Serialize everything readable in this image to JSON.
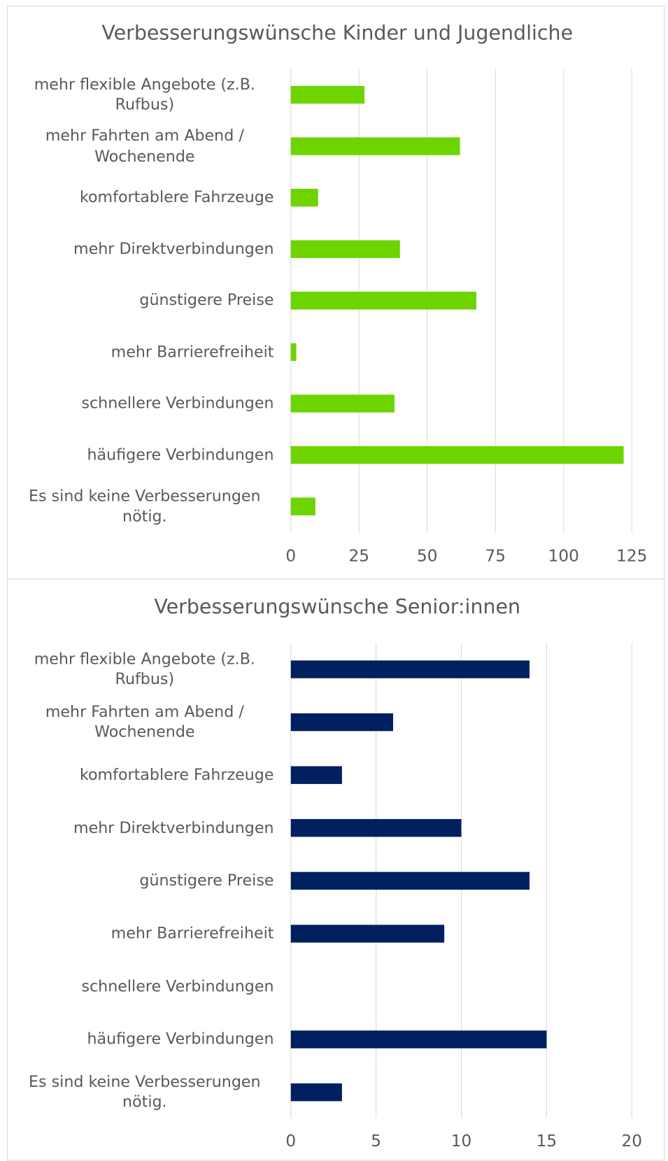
{
  "chart_data": [
    {
      "type": "barh",
      "title": "Verbesserungswünsche Kinder und Jugendliche",
      "categories": [
        "mehr flexible Angebote (z.B. Rufbus)",
        "mehr Fahrten am Abend / Wochenende",
        "komfortablere Fahrzeuge",
        "mehr Direktverbindungen",
        "günstigere Preise",
        "mehr Barrierefreiheit",
        "schnellere Verbindungen",
        "häufigere Verbindungen",
        "Es sind keine Verbesserungen nötig."
      ],
      "values": [
        27,
        62,
        10,
        40,
        68,
        2,
        38,
        122,
        9
      ],
      "color": "#6dd400",
      "xlim": [
        0,
        125
      ],
      "xticks": [
        0,
        25,
        50,
        75,
        100,
        125
      ],
      "grid": true
    },
    {
      "type": "barh",
      "title": "Verbesserungswünsche Senior:innen",
      "categories": [
        "mehr flexible Angebote (z.B. Rufbus)",
        "mehr Fahrten am Abend / Wochenende",
        "komfortablere Fahrzeuge",
        "mehr Direktverbindungen",
        "günstigere Preise",
        "mehr Barrierefreiheit",
        "schnellere Verbindungen",
        "häufigere Verbindungen",
        "Es sind keine Verbesserungen nötig."
      ],
      "values": [
        14,
        6,
        3,
        10,
        14,
        9,
        0,
        15,
        3
      ],
      "color": "#002060",
      "xlim": [
        0,
        20
      ],
      "xticks": [
        0,
        5,
        10,
        15,
        20
      ],
      "grid": true
    }
  ]
}
